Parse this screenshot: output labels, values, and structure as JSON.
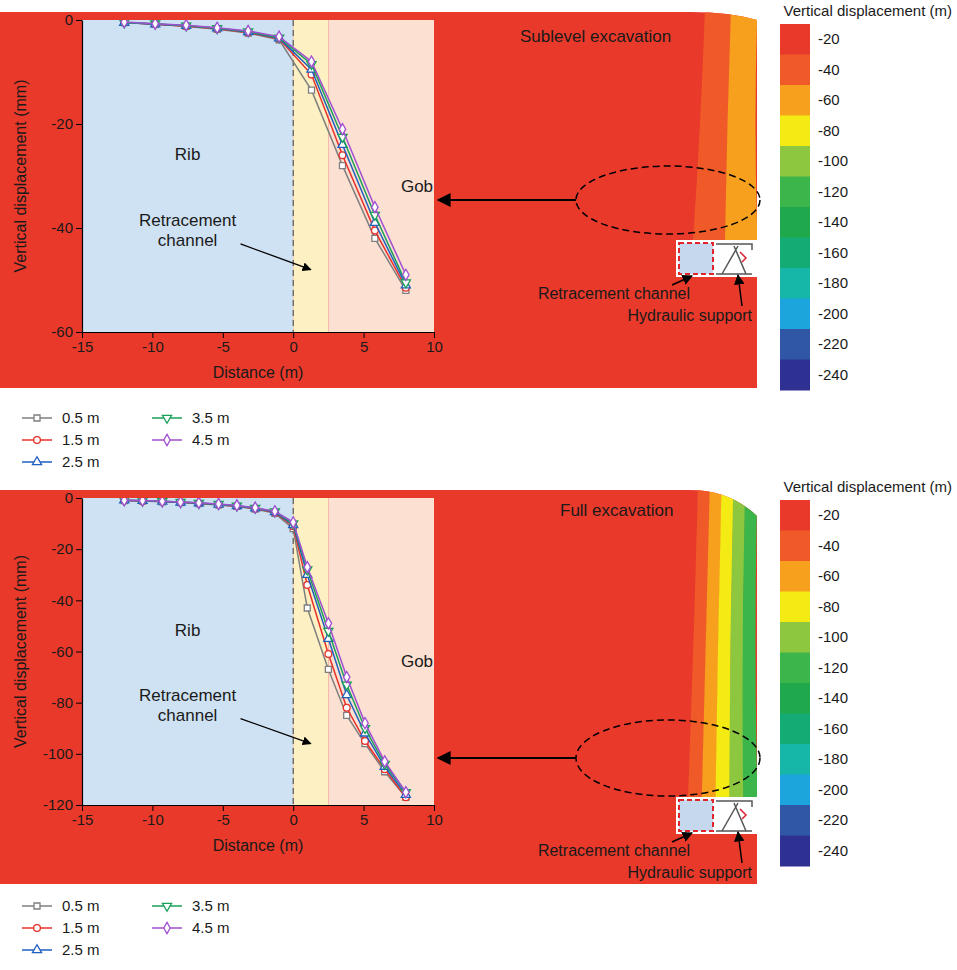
{
  "chart_data": [
    {
      "type": "line",
      "title": "Sublevel excavation",
      "annotations": [
        "Retracement channel",
        "Hydraulic support"
      ],
      "x_label": "Distance (m)",
      "y_label": "Vertical displacement (mm)",
      "regions": [
        {
          "label": "Rib",
          "range": [
            -15,
            0
          ],
          "color": "#cfe2f3"
        },
        {
          "label": "Retracement channel",
          "range": [
            0,
            2.5
          ],
          "color": "#fdf0c2"
        },
        {
          "label": "Gob",
          "range": [
            2.5,
            10
          ],
          "color": "#fce0d2"
        }
      ],
      "x": [
        -12,
        -9.8,
        -7.6,
        -5.4,
        -3.2,
        -1,
        1.3,
        3.5,
        5.8,
        8
      ],
      "xlim": [
        -15,
        10
      ],
      "xticks": [
        -15,
        -10,
        -5,
        0,
        5,
        10
      ],
      "ylim": [
        -60,
        0
      ],
      "yticks": [
        -60,
        -40,
        -20,
        0
      ],
      "series": [
        {
          "name": "0.5 m",
          "color": "#7f7f7f",
          "marker": "square",
          "values": [
            -0.5,
            -0.8,
            -1.2,
            -1.8,
            -2.5,
            -3.8,
            -13.5,
            -28,
            -42,
            -52
          ]
        },
        {
          "name": "1.5 m",
          "color": "#e8302a",
          "marker": "circle",
          "values": [
            -0.5,
            -0.8,
            -1.2,
            -1.7,
            -2.4,
            -3.6,
            -10.5,
            -26,
            -40.5,
            -51.5
          ]
        },
        {
          "name": "2.5 m",
          "color": "#1f5fbf",
          "marker": "triangle",
          "values": [
            -0.5,
            -0.8,
            -1.1,
            -1.6,
            -2.3,
            -3.5,
            -9.5,
            -24,
            -39,
            -51
          ]
        },
        {
          "name": "3.5 m",
          "color": "#18a058",
          "marker": "triangle-down",
          "values": [
            -0.5,
            -0.7,
            -1.1,
            -1.6,
            -2.2,
            -3.4,
            -8.5,
            -22.5,
            -37.5,
            -50.5
          ]
        },
        {
          "name": "4.5 m",
          "color": "#a04fd0",
          "marker": "diamond",
          "values": [
            -0.4,
            -0.7,
            -1,
            -1.5,
            -2.1,
            -3.2,
            -8,
            -21,
            -36,
            -49
          ]
        }
      ],
      "legend": "bottom",
      "contour_levels": [
        -40,
        -60
      ],
      "colorbar": {
        "title": "Vertical displacement (m)",
        "ticks": [
          -20,
          -40,
          -60,
          -80,
          -100,
          -120,
          -140,
          -160,
          -180,
          -200,
          -220,
          -240
        ],
        "colors": [
          "#e8392a",
          "#f05a28",
          "#f6a01e",
          "#f4ea14",
          "#8dc63f",
          "#3cb54a",
          "#20a94c",
          "#14ab74",
          "#16b6a8",
          "#1ba5dc",
          "#2f57a6",
          "#2e3192"
        ]
      }
    },
    {
      "type": "line",
      "title": "Full excavation",
      "annotations": [
        "Retracement channel",
        "Hydraulic support"
      ],
      "x_label": "Distance (m)",
      "y_label": "Vertical displacement (mm)",
      "regions": [
        {
          "label": "Rib",
          "range": [
            -15,
            0
          ],
          "color": "#cfe2f3"
        },
        {
          "label": "Retracement channel",
          "range": [
            0,
            2.5
          ],
          "color": "#fdf0c2"
        },
        {
          "label": "Gob",
          "range": [
            2.5,
            10
          ],
          "color": "#fce0d2"
        }
      ],
      "x": [
        -12,
        -10.7,
        -9.3,
        -8,
        -6.7,
        -5.3,
        -4,
        -2.7,
        -1.3,
        0,
        1,
        2.5,
        3.8,
        5.1,
        6.5,
        8
      ],
      "xlim": [
        -15,
        10
      ],
      "xticks": [
        -15,
        -10,
        -5,
        0,
        5,
        10
      ],
      "ylim": [
        -120,
        0
      ],
      "yticks": [
        -120,
        -100,
        -80,
        -60,
        -40,
        -20,
        0
      ],
      "series": [
        {
          "name": "0.5 m",
          "color": "#7f7f7f",
          "marker": "square",
          "values": [
            -1,
            -1.2,
            -1.5,
            -1.8,
            -2.2,
            -2.7,
            -3.3,
            -4.3,
            -6,
            -12,
            -43,
            -67,
            -85,
            -96,
            -107,
            -117
          ]
        },
        {
          "name": "1.5 m",
          "color": "#e8302a",
          "marker": "circle",
          "values": [
            -1,
            -1.2,
            -1.4,
            -1.7,
            -2.1,
            -2.6,
            -3.2,
            -4.1,
            -5.7,
            -11,
            -34,
            -61,
            -82,
            -95,
            -106,
            -117
          ]
        },
        {
          "name": "2.5 m",
          "color": "#1f5fbf",
          "marker": "triangle",
          "values": [
            -0.9,
            -1.1,
            -1.4,
            -1.7,
            -2,
            -2.5,
            -3.1,
            -4,
            -5.5,
            -10.5,
            -30,
            -55,
            -77,
            -92,
            -105,
            -116
          ]
        },
        {
          "name": "3.5 m",
          "color": "#18a058",
          "marker": "triangle-down",
          "values": [
            -0.9,
            -1.1,
            -1.3,
            -1.6,
            -2,
            -2.4,
            -3,
            -3.9,
            -5.3,
            -10,
            -28,
            -52,
            -73,
            -90,
            -104,
            -115
          ]
        },
        {
          "name": "4.5 m",
          "color": "#a04fd0",
          "marker": "diamond",
          "values": [
            -0.9,
            -1,
            -1.3,
            -1.6,
            -1.9,
            -2.3,
            -2.9,
            -3.8,
            -5.2,
            -9.5,
            -27,
            -49,
            -70,
            -88,
            -103,
            -115
          ]
        }
      ],
      "legend": "bottom",
      "contour_levels": [
        -40,
        -60,
        -80,
        -100,
        -120
      ],
      "colorbar": {
        "title": "Vertical displacement (m)",
        "ticks": [
          -20,
          -40,
          -60,
          -80,
          -100,
          -120,
          -140,
          -160,
          -180,
          -200,
          -220,
          -240
        ],
        "colors": [
          "#e8392a",
          "#f05a28",
          "#f6a01e",
          "#f4ea14",
          "#8dc63f",
          "#3cb54a",
          "#20a94c",
          "#14ab74",
          "#16b6a8",
          "#1ba5dc",
          "#2f57a6",
          "#2e3192"
        ]
      }
    }
  ]
}
